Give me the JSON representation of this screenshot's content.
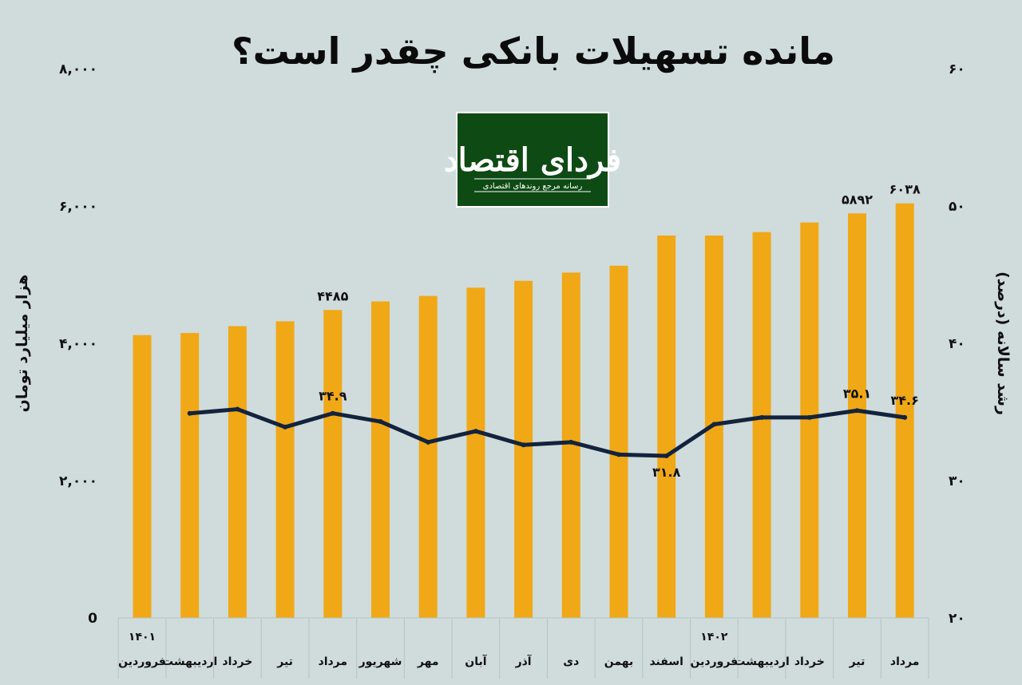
{
  "title": "مانده تسهیلات بانکی چقدر است؟",
  "logo": {
    "name": "فردای اقتصاد",
    "tagline": "رسانه مرجع روندهای اقتصادی",
    "bg_color": "#0e4a14"
  },
  "colors": {
    "background": "#cfdcdb",
    "bar": "#f0a817",
    "line": "#13233d"
  },
  "chart_data": {
    "type": "bar",
    "categories": [
      "فروردین",
      "اردیبهشت",
      "خرداد",
      "تیر",
      "مرداد",
      "شهریور",
      "مهر",
      "آبان",
      "آذر",
      "دی",
      "بهمن",
      "اسفند",
      "فروردین",
      "اردیبهشت",
      "خرداد",
      "تیر",
      "مرداد"
    ],
    "year_labels": [
      {
        "index": 0,
        "text": "۱۴۰۱"
      },
      {
        "index": 12,
        "text": "۱۴۰۲"
      }
    ],
    "series": [
      {
        "type": "bar",
        "axis": "left",
        "values": [
          4120,
          4150,
          4250,
          4320,
          4485,
          4610,
          4690,
          4810,
          4910,
          5030,
          5130,
          5570,
          5570,
          5620,
          5760,
          5892,
          6038
        ],
        "data_labels": [
          {
            "index": 4,
            "text": "۴۴۸۵"
          },
          {
            "index": 15,
            "text": "۵۸۹۲"
          },
          {
            "index": 16,
            "text": "۶۰۳۸"
          }
        ]
      },
      {
        "type": "line",
        "axis": "right",
        "values": [
          null,
          34.9,
          35.2,
          33.9,
          34.9,
          34.3,
          32.8,
          33.6,
          32.6,
          32.8,
          31.9,
          31.8,
          34.1,
          34.6,
          34.6,
          35.1,
          34.6
        ],
        "data_labels": [
          {
            "index": 4,
            "text": "۳۴.۹"
          },
          {
            "index": 11,
            "text": "۳۱.۸"
          },
          {
            "index": 15,
            "text": "۳۵.۱"
          },
          {
            "index": 16,
            "text": "۳۴.۶"
          }
        ]
      }
    ],
    "left_axis": {
      "label": "هزار میلیارد تومان",
      "range": [
        0,
        8000
      ],
      "ticks": [
        0,
        2000,
        4000,
        6000,
        8000
      ],
      "tick_labels": [
        "0",
        "۲,۰۰۰",
        "۴,۰۰۰",
        "۶,۰۰۰",
        "۸,۰۰۰"
      ]
    },
    "right_axis": {
      "label": "رشد سالانه (درصد)",
      "range": [
        20,
        60
      ],
      "ticks": [
        20,
        30,
        40,
        50,
        60
      ],
      "tick_labels": [
        "۲۰",
        "۳۰",
        "۴۰",
        "۵۰",
        "۶۰"
      ]
    },
    "grid": false,
    "legend": "none"
  }
}
